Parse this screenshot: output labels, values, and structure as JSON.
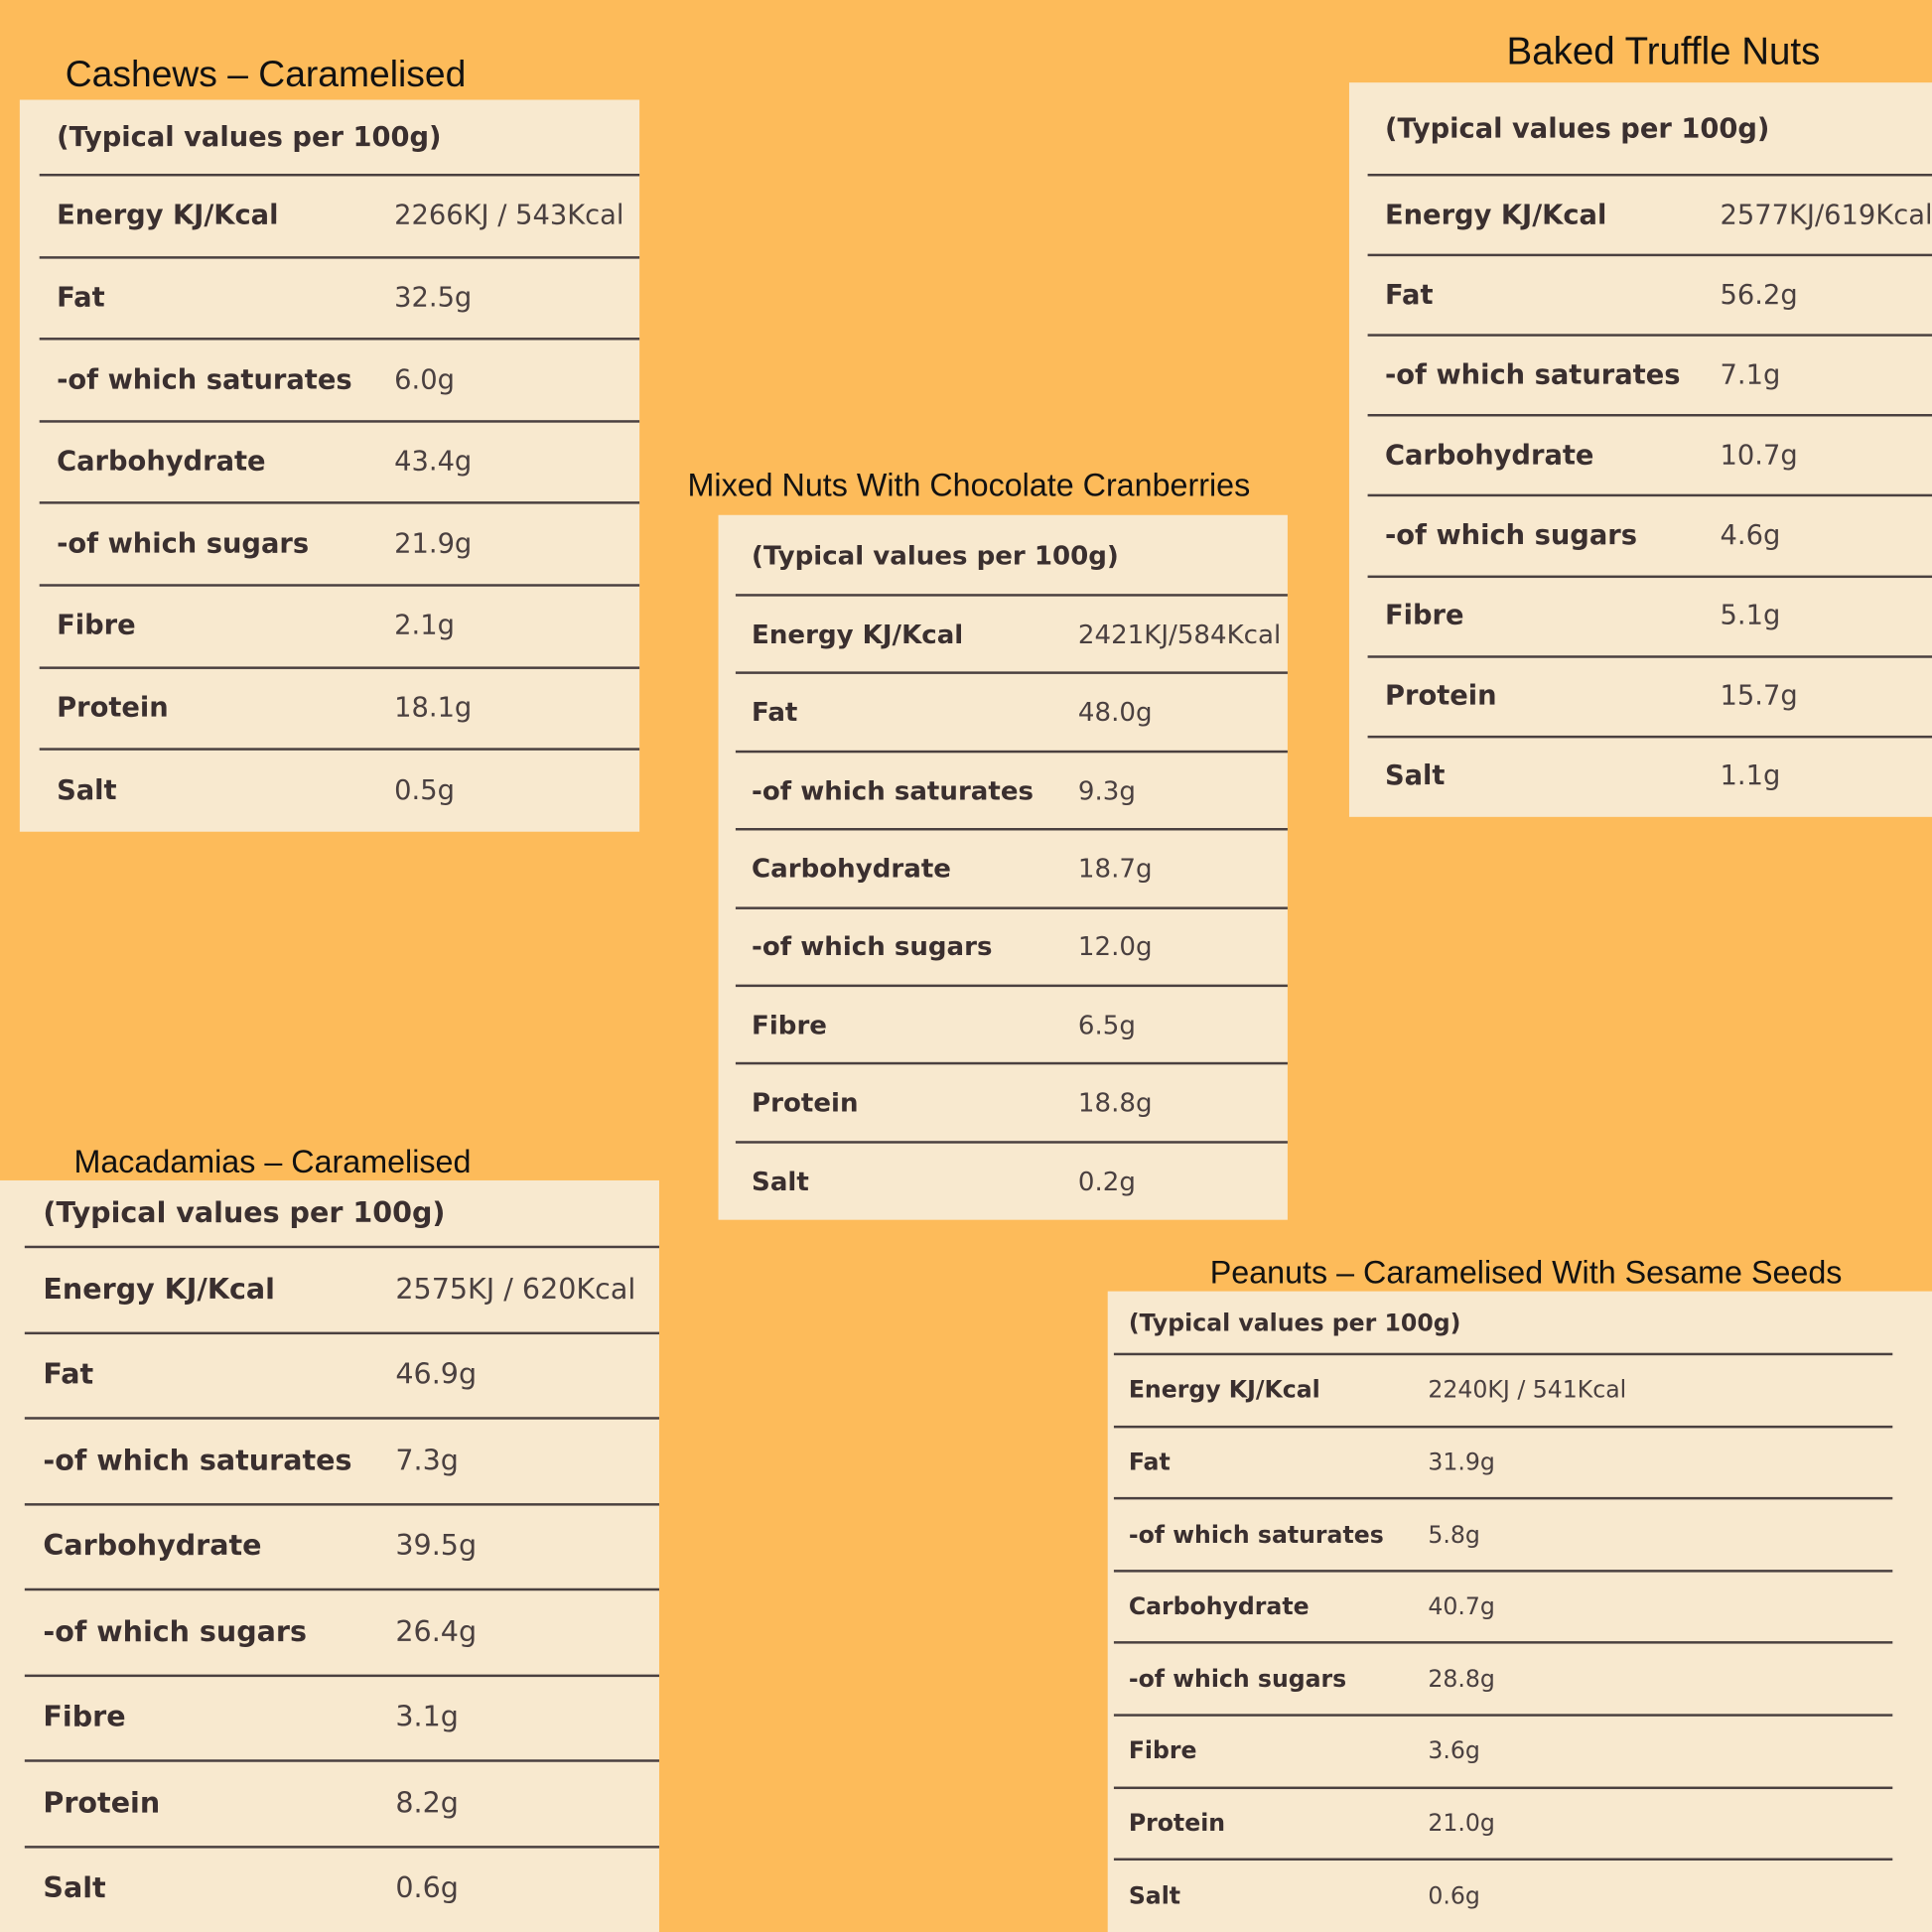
{
  "panels": [
    {
      "title": "Cashews – Caramelised",
      "header": "(Typical values per 100g)",
      "rows": [
        {
          "label": "Energy KJ/Kcal",
          "value": "2266KJ / 543Kcal"
        },
        {
          "label": "Fat",
          "value": "32.5g"
        },
        {
          "label": "-of which saturates",
          "value": "6.0g"
        },
        {
          "label": "Carbohydrate",
          "value": "43.4g"
        },
        {
          "label": "-of which sugars",
          "value": "21.9g"
        },
        {
          "label": "Fibre",
          "value": "2.1g"
        },
        {
          "label": "Protein",
          "value": "18.1g"
        },
        {
          "label": "Salt",
          "value": "0.5g"
        }
      ]
    },
    {
      "title": "Baked Truffle Nuts",
      "header": "(Typical values per 100g)",
      "rows": [
        {
          "label": "Energy KJ/Kcal",
          "value": "2577KJ/619Kcal"
        },
        {
          "label": "Fat",
          "value": "56.2g"
        },
        {
          "label": "-of which saturates",
          "value": "7.1g"
        },
        {
          "label": "Carbohydrate",
          "value": "10.7g"
        },
        {
          "label": "-of which sugars",
          "value": "4.6g"
        },
        {
          "label": "Fibre",
          "value": "5.1g"
        },
        {
          "label": "Protein",
          "value": "15.7g"
        },
        {
          "label": "Salt",
          "value": "1.1g"
        }
      ]
    },
    {
      "title": "Mixed Nuts With Chocolate Cranberries",
      "header": "(Typical values per 100g)",
      "rows": [
        {
          "label": "Energy KJ/Kcal",
          "value": "2421KJ/584Kcal"
        },
        {
          "label": "Fat",
          "value": "48.0g"
        },
        {
          "label": "-of which saturates",
          "value": "9.3g"
        },
        {
          "label": "Carbohydrate",
          "value": "18.7g"
        },
        {
          "label": "-of which sugars",
          "value": "12.0g"
        },
        {
          "label": "Fibre",
          "value": "6.5g"
        },
        {
          "label": "Protein",
          "value": "18.8g"
        },
        {
          "label": "Salt",
          "value": "0.2g"
        }
      ]
    },
    {
      "title": "Macadamias – Caramelised",
      "header": "(Typical values per 100g)",
      "rows": [
        {
          "label": "Energy KJ/Kcal",
          "value": "2575KJ / 620Kcal"
        },
        {
          "label": "Fat",
          "value": "46.9g"
        },
        {
          "label": "-of which saturates",
          "value": "7.3g"
        },
        {
          "label": "Carbohydrate",
          "value": "39.5g"
        },
        {
          "label": "-of which sugars",
          "value": "26.4g"
        },
        {
          "label": "Fibre",
          "value": "3.1g"
        },
        {
          "label": "Protein",
          "value": "8.2g"
        },
        {
          "label": "Salt",
          "value": "0.6g"
        }
      ]
    },
    {
      "title": "Peanuts – Caramelised With Sesame Seeds",
      "header": "(Typical values per 100g)",
      "rows": [
        {
          "label": "Energy KJ/Kcal",
          "value": "2240KJ / 541Kcal"
        },
        {
          "label": "Fat",
          "value": "31.9g"
        },
        {
          "label": "-of which saturates",
          "value": "5.8g"
        },
        {
          "label": "Carbohydrate",
          "value": "40.7g"
        },
        {
          "label": "-of which sugars",
          "value": "28.8g"
        },
        {
          "label": "Fibre",
          "value": "3.6g"
        },
        {
          "label": "Protein",
          "value": "21.0g"
        },
        {
          "label": "Salt",
          "value": "0.6g"
        }
      ]
    }
  ]
}
